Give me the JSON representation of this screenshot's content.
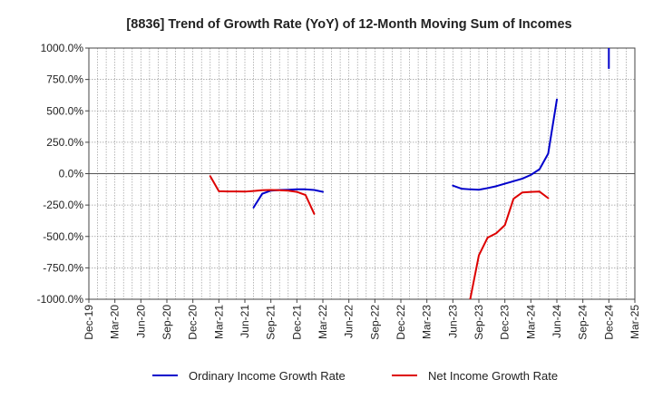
{
  "chart_data": {
    "type": "line",
    "title": "[8836]  Trend of Growth Rate (YoY) of 12-Month Moving Sum of Incomes",
    "xlabel": "",
    "ylabel": "",
    "ylim": [
      -1000,
      1000
    ],
    "yticks": [
      1000,
      750,
      500,
      250,
      0,
      -250,
      -500,
      -750,
      -1000
    ],
    "ytick_labels": [
      "1000.0%",
      "750.0%",
      "500.0%",
      "250.0%",
      "0.0%",
      "-250.0%",
      "-500.0%",
      "-750.0%",
      "-1000.0%"
    ],
    "x_start": "2019-12",
    "x_end": "2025-03",
    "xtick_labels": [
      "Dec-19",
      "Mar-20",
      "Jun-20",
      "Sep-20",
      "Dec-20",
      "Mar-21",
      "Jun-21",
      "Sep-21",
      "Dec-21",
      "Mar-22",
      "Jun-22",
      "Sep-22",
      "Dec-22",
      "Mar-23",
      "Jun-23",
      "Sep-23",
      "Dec-23",
      "Mar-24",
      "Jun-24",
      "Sep-24",
      "Dec-24",
      "Mar-25"
    ],
    "grid": true,
    "legend_position": "bottom",
    "series": [
      {
        "name": "Ordinary Income Growth Rate",
        "color": "#0000cc",
        "segments": [
          [
            [
              "2021-07",
              -270
            ],
            [
              "2021-08",
              -160
            ],
            [
              "2021-09",
              -135
            ],
            [
              "2021-10",
              -130
            ],
            [
              "2021-11",
              -128
            ],
            [
              "2021-12",
              -125
            ],
            [
              "2022-01",
              -125
            ],
            [
              "2022-02",
              -130
            ],
            [
              "2022-03",
              -145
            ]
          ],
          [
            [
              "2023-06",
              -95
            ],
            [
              "2023-07",
              -120
            ],
            [
              "2023-08",
              -125
            ],
            [
              "2023-09",
              -128
            ],
            [
              "2023-10",
              -115
            ],
            [
              "2023-11",
              -100
            ],
            [
              "2023-12",
              -80
            ],
            [
              "2024-01",
              -60
            ],
            [
              "2024-02",
              -40
            ],
            [
              "2024-03",
              -10
            ],
            [
              "2024-04",
              35
            ],
            [
              "2024-05",
              160
            ],
            [
              "2024-06",
              590
            ]
          ],
          [
            [
              "2024-12",
              1000
            ],
            [
              "2024-12",
              840
            ]
          ]
        ]
      },
      {
        "name": "Net Income Growth Rate",
        "color": "#dd0000",
        "segments": [
          [
            [
              "2021-02",
              -20
            ],
            [
              "2021-03",
              -140
            ],
            [
              "2021-04",
              -142
            ],
            [
              "2021-05",
              -142
            ],
            [
              "2021-06",
              -143
            ],
            [
              "2021-07",
              -138
            ],
            [
              "2021-08",
              -132
            ],
            [
              "2021-09",
              -130
            ],
            [
              "2021-10",
              -132
            ],
            [
              "2021-11",
              -135
            ],
            [
              "2021-12",
              -145
            ],
            [
              "2022-01",
              -170
            ],
            [
              "2022-02",
              -320
            ]
          ],
          [
            [
              "2023-08",
              -1000
            ],
            [
              "2023-09",
              -650
            ],
            [
              "2023-10",
              -510
            ],
            [
              "2023-11",
              -475
            ],
            [
              "2023-12",
              -410
            ],
            [
              "2024-01",
              -200
            ],
            [
              "2024-02",
              -150
            ],
            [
              "2024-03",
              -145
            ],
            [
              "2024-04",
              -143
            ],
            [
              "2024-05",
              -195
            ]
          ]
        ]
      }
    ]
  }
}
